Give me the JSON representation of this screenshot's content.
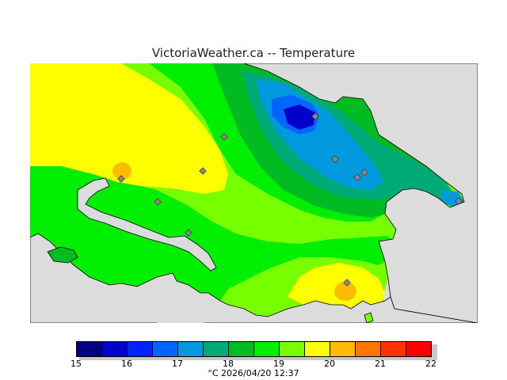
{
  "title": "VictoriaWeather.ca -- Temperature",
  "legend": {
    "ticks": [
      "15",
      "16",
      "17",
      "18",
      "19",
      "20",
      "21",
      "22"
    ],
    "colors": [
      "#000080",
      "#0000cc",
      "#0022ff",
      "#0066ff",
      "#0099dd",
      "#00aa77",
      "#00bb22",
      "#00ee00",
      "#77ff00",
      "#ffff00",
      "#ffbb00",
      "#ff7700",
      "#ff3300",
      "#ff0000"
    ]
  },
  "footer": {
    "unit": "°C",
    "timestamp": "2026/04/20 12:37"
  },
  "palette": {
    "ocean": "#dcdcdc",
    "green_light": "#77ff00",
    "green": "#00ee00",
    "green_mid": "#00bb22",
    "teal": "#00aa77",
    "cyan_blue": "#0099dd",
    "blue": "#0066ff",
    "deep_blue": "#0000cc",
    "yellow": "#ffff00",
    "orange": "#ffbb00"
  }
}
